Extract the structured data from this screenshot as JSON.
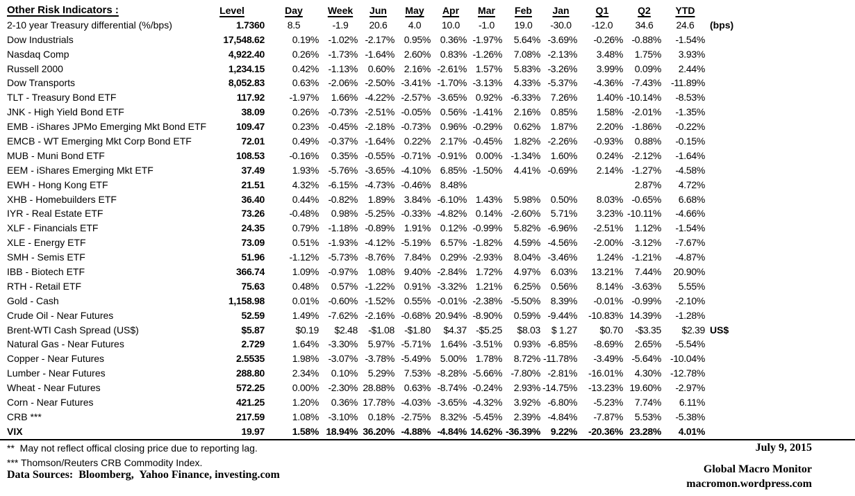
{
  "table": {
    "title": "Other Risk Indicators :",
    "columns": [
      "Level",
      "Day",
      "Week",
      "Jun",
      "May",
      "Apr",
      "Mar",
      "Feb",
      "Jan",
      "Q1",
      "Q2",
      "YTD"
    ],
    "rows": [
      {
        "label": "2-10 year Treasury differential (%/bps)",
        "cells": [
          "1.7360",
          "8.5",
          "-1.9",
          "20.6",
          "4.0",
          "10.0",
          "-1.0",
          "19.0",
          "-30.0",
          "-12.0",
          "34.6",
          "24.6"
        ],
        "suffix": "(bps)",
        "center": true
      },
      {
        "label": "Dow Industrials",
        "cells": [
          "17,548.62",
          "0.19%",
          "-1.02%",
          "-2.17%",
          "0.95%",
          "0.36%",
          "-1.97%",
          "5.64%",
          "-3.69%",
          "-0.26%",
          "-0.88%",
          "-1.54%"
        ]
      },
      {
        "label": "Nasdaq Comp",
        "cells": [
          "4,922.40",
          "0.26%",
          "-1.73%",
          "-1.64%",
          "2.60%",
          "0.83%",
          "-1.26%",
          "7.08%",
          "-2.13%",
          "3.48%",
          "1.75%",
          "3.93%"
        ]
      },
      {
        "label": "Russell 2000",
        "cells": [
          "1,234.15",
          "0.42%",
          "-1.13%",
          "0.60%",
          "2.16%",
          "-2.61%",
          "1.57%",
          "5.83%",
          "-3.26%",
          "3.99%",
          "0.09%",
          "2.44%"
        ]
      },
      {
        "label": "Dow Transports",
        "cells": [
          "8,052.83",
          "0.63%",
          "-2.06%",
          "-2.50%",
          "-3.41%",
          "-1.70%",
          "-3.13%",
          "4.33%",
          "-5.37%",
          "-4.36%",
          "-7.43%",
          "-11.89%"
        ]
      },
      {
        "label": "TLT - Treasury Bond ETF",
        "cells": [
          "117.92",
          "-1.97%",
          "1.66%",
          "-4.22%",
          "-2.57%",
          "-3.65%",
          "0.92%",
          "-6.33%",
          "7.26%",
          "1.40%",
          "-10.14%",
          "-8.53%"
        ]
      },
      {
        "label": "JNK - High Yield Bond ETF",
        "cells": [
          "38.09",
          "0.26%",
          "-0.73%",
          "-2.51%",
          "-0.05%",
          "0.56%",
          "-1.41%",
          "2.16%",
          "0.85%",
          "1.58%",
          "-2.01%",
          "-1.35%"
        ]
      },
      {
        "label": "EMB - iShares JPMo Emerging Mkt Bond ETF",
        "cells": [
          "109.47",
          "0.23%",
          "-0.45%",
          "-2.18%",
          "-0.73%",
          "0.96%",
          "-0.29%",
          "0.62%",
          "1.87%",
          "2.20%",
          "-1.86%",
          "-0.22%"
        ]
      },
      {
        "label": "EMCB - WT Emerging Mkt Corp Bond ETF",
        "cells": [
          "72.01",
          "0.49%",
          "-0.37%",
          "-1.64%",
          "0.22%",
          "2.17%",
          "-0.45%",
          "1.82%",
          "-2.26%",
          "-0.93%",
          "0.88%",
          "-0.15%"
        ]
      },
      {
        "label": "MUB - Muni Bond ETF",
        "cells": [
          "108.53",
          "-0.16%",
          "0.35%",
          "-0.55%",
          "-0.71%",
          "-0.91%",
          "0.00%",
          "-1.34%",
          "1.60%",
          "0.24%",
          "-2.12%",
          "-1.64%"
        ]
      },
      {
        "label": "EEM - iShares Emerging Mkt ETF",
        "cells": [
          "37.49",
          "1.93%",
          "-5.76%",
          "-3.65%",
          "-4.10%",
          "6.85%",
          "-1.50%",
          "4.41%",
          "-0.69%",
          "2.14%",
          "-1.27%",
          "-4.58%"
        ]
      },
      {
        "label": "EWH - Hong Kong ETF",
        "cells": [
          "21.51",
          "4.32%",
          "-6.15%",
          "-4.73%",
          "-0.46%",
          "8.48%",
          "",
          "",
          "",
          "",
          "2.87%",
          "4.72%"
        ]
      },
      {
        "label": "XHB - Homebuilders ETF",
        "cells": [
          "36.40",
          "0.44%",
          "-0.82%",
          "1.89%",
          "3.84%",
          "-6.10%",
          "1.43%",
          "5.98%",
          "0.50%",
          "8.03%",
          "-0.65%",
          "6.68%"
        ]
      },
      {
        "label": "IYR - Real Estate ETF",
        "cells": [
          "73.26",
          "-0.48%",
          "0.98%",
          "-5.25%",
          "-0.33%",
          "-4.82%",
          "0.14%",
          "-2.60%",
          "5.71%",
          "3.23%",
          "-10.11%",
          "-4.66%"
        ]
      },
      {
        "label": "XLF - Financials ETF",
        "cells": [
          "24.35",
          "0.79%",
          "-1.18%",
          "-0.89%",
          "1.91%",
          "0.12%",
          "-0.99%",
          "5.82%",
          "-6.96%",
          "-2.51%",
          "1.12%",
          "-1.54%"
        ]
      },
      {
        "label": "XLE - Energy ETF",
        "cells": [
          "73.09",
          "0.51%",
          "-1.93%",
          "-4.12%",
          "-5.19%",
          "6.57%",
          "-1.82%",
          "4.59%",
          "-4.56%",
          "-2.00%",
          "-3.12%",
          "-7.67%"
        ]
      },
      {
        "label": "SMH - Semis ETF",
        "cells": [
          "51.96",
          "-1.12%",
          "-5.73%",
          "-8.76%",
          "7.84%",
          "0.29%",
          "-2.93%",
          "8.04%",
          "-3.46%",
          "1.24%",
          "-1.21%",
          "-4.87%"
        ]
      },
      {
        "label": "IBB - Biotech ETF",
        "cells": [
          "366.74",
          "1.09%",
          "-0.97%",
          "1.08%",
          "9.40%",
          "-2.84%",
          "1.72%",
          "4.97%",
          "6.03%",
          "13.21%",
          "7.44%",
          "20.90%"
        ]
      },
      {
        "label": "RTH - Retail ETF",
        "cells": [
          "75.63",
          "0.48%",
          "0.57%",
          "-1.22%",
          "0.91%",
          "-3.32%",
          "1.21%",
          "6.25%",
          "0.56%",
          "8.14%",
          "-3.63%",
          "5.55%"
        ]
      },
      {
        "label": "Gold - Cash",
        "cells": [
          "1,158.98",
          "0.01%",
          "-0.60%",
          "-1.52%",
          "0.55%",
          "-0.01%",
          "-2.38%",
          "-5.50%",
          "8.39%",
          "-0.01%",
          "-0.99%",
          "-2.10%"
        ]
      },
      {
        "label": "Crude Oil - Near Futures",
        "cells": [
          "52.59",
          "1.49%",
          "-7.62%",
          "-2.16%",
          "-0.68%",
          "20.94%",
          "-8.90%",
          "0.59%",
          "-9.44%",
          "-10.83%",
          "14.39%",
          "-1.28%"
        ]
      },
      {
        "label": "Brent-WTI Cash Spread (US$)",
        "cells": [
          "$5.87",
          "$0.19",
          "$2.48",
          "-$1.08",
          "-$1.80",
          "$4.37",
          "-$5.25",
          "$8.03",
          "$ 1.27",
          "$0.70",
          "-$3.35",
          "$2.39"
        ],
        "suffix": "US$"
      },
      {
        "label": "Natural Gas - Near Futures",
        "cells": [
          "2.729",
          "1.64%",
          "-3.30%",
          "5.97%",
          "-5.71%",
          "1.64%",
          "-3.51%",
          "0.93%",
          "-6.85%",
          "-8.69%",
          "2.65%",
          "-5.54%"
        ]
      },
      {
        "label": "Copper - Near Futures",
        "cells": [
          "2.5535",
          "1.98%",
          "-3.07%",
          "-3.78%",
          "-5.49%",
          "5.00%",
          "1.78%",
          "8.72%",
          "-11.78%",
          "-3.49%",
          "-5.64%",
          "-10.04%"
        ]
      },
      {
        "label": "Lumber - Near Futures",
        "cells": [
          "288.80",
          "2.34%",
          "0.10%",
          "5.29%",
          "7.53%",
          "-8.28%",
          "-5.66%",
          "-7.80%",
          "-2.81%",
          "-16.01%",
          "4.30%",
          "-12.78%"
        ]
      },
      {
        "label": "Wheat - Near Futures",
        "cells": [
          "572.25",
          "0.00%",
          "-2.30%",
          "28.88%",
          "0.63%",
          "-8.74%",
          "-0.24%",
          "2.93%",
          "-14.75%",
          "-13.23%",
          "19.60%",
          "-2.97%"
        ]
      },
      {
        "label": "Corn - Near Futures",
        "cells": [
          "421.25",
          "1.20%",
          "0.36%",
          "17.78%",
          "-4.03%",
          "-3.65%",
          "-4.32%",
          "3.92%",
          "-6.80%",
          "-5.23%",
          "7.74%",
          "6.11%"
        ]
      },
      {
        "label": "CRB ***",
        "cells": [
          "217.59",
          "1.08%",
          "-3.10%",
          "0.18%",
          "-2.75%",
          "8.32%",
          "-5.45%",
          "2.39%",
          "-4.84%",
          "-7.87%",
          "5.53%",
          "-5.38%"
        ]
      },
      {
        "label": "VIX",
        "cells": [
          "19.97",
          "1.58%",
          "18.94%",
          "36.20%",
          "-4.88%",
          "-4.84%",
          "14.62%",
          "-36.39%",
          "9.22%",
          "-20.36%",
          "23.28%",
          "4.01%"
        ],
        "bold": true
      }
    ]
  },
  "footnotes": {
    "note_double_star": "**  May not reflect offical closing price due to reporting lag.",
    "note_triple_star": "*** Thomson/Reuters CRB Commodity Index.",
    "sources": "Data Sources:  Bloomberg,  Yahoo Finance, investing.com"
  },
  "footer": {
    "date": "July 9, 2015",
    "brand": "Global Macro Monitor",
    "url": "macromon.wordpress.com"
  }
}
